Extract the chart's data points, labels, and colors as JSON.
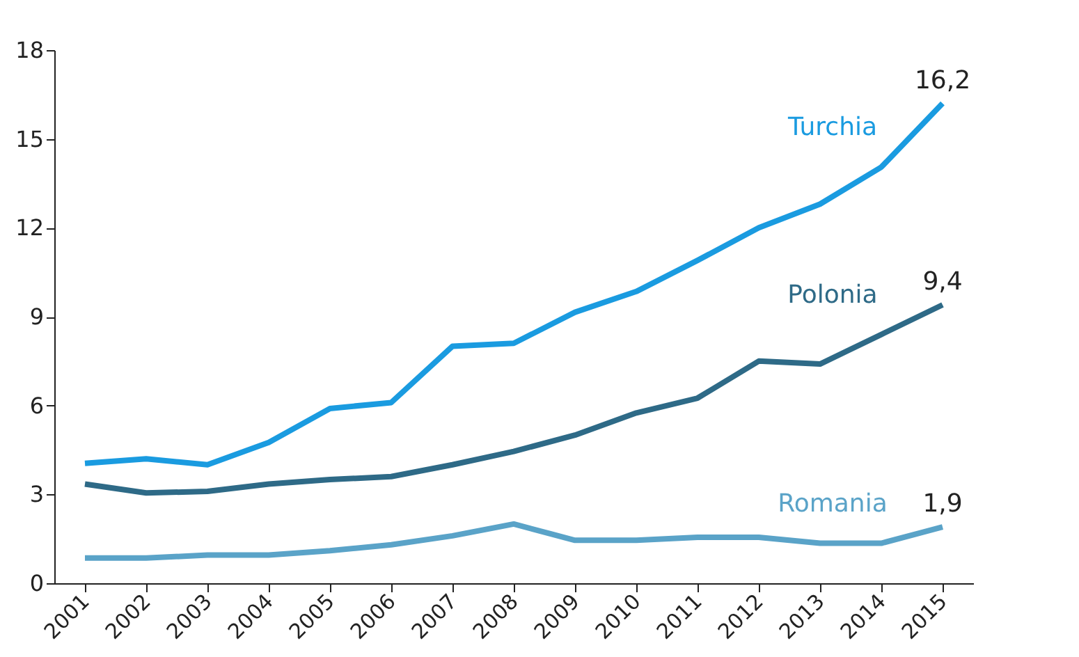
{
  "chart_data": {
    "type": "line",
    "categories": [
      "2001",
      "2002",
      "2003",
      "2004",
      "2005",
      "2006",
      "2007",
      "2008",
      "2009",
      "2010",
      "2011",
      "2012",
      "2013",
      "2014",
      "2015"
    ],
    "series": [
      {
        "name": "Turchia",
        "color": "#1a9be0",
        "values": [
          4.05,
          4.2,
          4.0,
          4.75,
          5.9,
          6.1,
          8.0,
          8.1,
          9.15,
          9.85,
          10.9,
          12.0,
          12.8,
          14.05,
          16.2
        ]
      },
      {
        "name": "Polonia",
        "color": "#2e6a87",
        "values": [
          3.35,
          3.05,
          3.1,
          3.35,
          3.5,
          3.6,
          4.0,
          4.45,
          5.0,
          5.75,
          6.25,
          7.5,
          7.4,
          8.4,
          9.4
        ]
      },
      {
        "name": "Romania",
        "color": "#5aa3c8",
        "values": [
          0.85,
          0.85,
          0.95,
          0.95,
          1.1,
          1.3,
          1.6,
          2.0,
          1.45,
          1.45,
          1.55,
          1.55,
          1.35,
          1.35,
          1.9
        ]
      }
    ],
    "ylim": [
      0,
      18
    ],
    "yticks": [
      0,
      3,
      6,
      9,
      12,
      15,
      18
    ],
    "annotations": [
      {
        "text": "16,2",
        "x": "2015",
        "y": 16.2
      },
      {
        "text": "9,4",
        "x": "2015",
        "y": 9.4
      },
      {
        "text": "1,9",
        "x": "2015",
        "y": 1.9
      }
    ],
    "grid": false,
    "marker": "none",
    "line_style": "solid"
  }
}
